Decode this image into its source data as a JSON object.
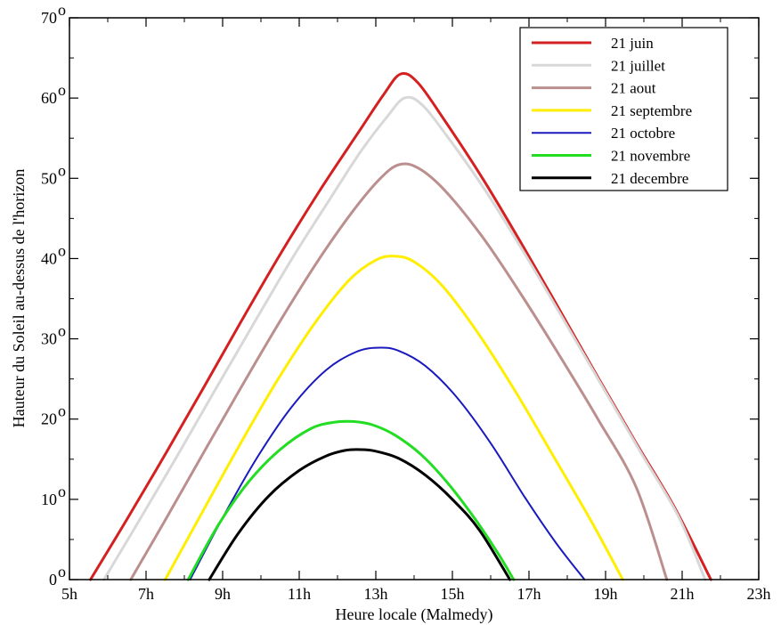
{
  "chart_data": {
    "type": "line",
    "xlabel": "Heure locale (Malmedy)",
    "ylabel": "Hauteur du Soleil au-dessus de l'horizon",
    "xlim": [
      5,
      23
    ],
    "ylim": [
      0,
      70
    ],
    "grid": false,
    "legend_position": "top-right",
    "x_tick_values": [
      5,
      7,
      9,
      11,
      13,
      15,
      17,
      19,
      21,
      23
    ],
    "x_tick_labels": [
      "5h",
      "7h",
      "9h",
      "11h",
      "13h",
      "15h",
      "17h",
      "19h",
      "21h",
      "23h"
    ],
    "y_tick_values": [
      0,
      10,
      20,
      30,
      40,
      50,
      60,
      70
    ],
    "y_tick_labels": [
      "0",
      "10",
      "20",
      "30",
      "40",
      "50",
      "60",
      "70"
    ],
    "y_tick_unit": "o",
    "series": [
      {
        "name": "21 juin",
        "color": "#d42020",
        "width": 3,
        "x": [
          5.55,
          6.5,
          7.5,
          8.5,
          9.5,
          10.5,
          11.5,
          12.5,
          13.2,
          13.65,
          14.1,
          14.8,
          15.8,
          16.8,
          17.8,
          18.8,
          19.8,
          20.8,
          21.75
        ],
        "y": [
          0,
          7.5,
          15.6,
          23.9,
          32.3,
          40.5,
          48.2,
          55.4,
          60.4,
          63,
          61.9,
          57.2,
          49.9,
          41.9,
          33.6,
          25.2,
          17,
          9,
          0
        ]
      },
      {
        "name": "21 juillet",
        "color": "#d8d8d8",
        "width": 3,
        "x": [
          5.9,
          6.8,
          7.8,
          8.8,
          9.8,
          10.8,
          11.8,
          12.6,
          13.3,
          13.75,
          14.2,
          14.9,
          15.9,
          16.9,
          17.9,
          18.9,
          19.9,
          20.9,
          21.6
        ],
        "y": [
          0,
          7.2,
          15.3,
          23.6,
          31.8,
          39.9,
          47.4,
          53.3,
          57.7,
          60,
          59.2,
          55,
          48.2,
          40.5,
          32.4,
          24.2,
          16,
          7.9,
          0
        ]
      },
      {
        "name": "21 aout",
        "color": "#bc8f8f",
        "width": 3,
        "x": [
          6.6,
          7.5,
          8.5,
          9.5,
          10.5,
          11.5,
          12.4,
          13.1,
          13.6,
          14.1,
          14.8,
          15.8,
          16.8,
          17.8,
          18.8,
          19.8,
          20.6
        ],
        "y": [
          0,
          7.4,
          15.8,
          24.1,
          32.2,
          39.8,
          45.9,
          49.9,
          51.7,
          51.3,
          48.5,
          42.6,
          35.5,
          27.9,
          20,
          11.5,
          0
        ]
      },
      {
        "name": "21 septembre",
        "color": "#ffee00",
        "width": 3,
        "x": [
          7.5,
          8.4,
          9.4,
          10.4,
          11.4,
          12.3,
          13,
          13.5,
          14,
          14.7,
          15.6,
          16.6,
          17.6,
          18.6,
          19.45
        ],
        "y": [
          0,
          7.8,
          16.4,
          24.6,
          31.9,
          37.3,
          39.8,
          40.3,
          39.6,
          36.8,
          31.2,
          23.8,
          15.7,
          7.5,
          0
        ]
      },
      {
        "name": "21 octobre",
        "color": "#1a1abf",
        "width": 2,
        "x": [
          8.15,
          9,
          9.9,
          10.8,
          11.7,
          12.5,
          13.1,
          13.6,
          14.3,
          15.1,
          16,
          16.9,
          17.7,
          18.45
        ],
        "y": [
          0,
          7.7,
          15.2,
          21.5,
          26.1,
          28.4,
          28.9,
          28.5,
          26.6,
          22.8,
          17,
          10.2,
          4.6,
          0
        ]
      },
      {
        "name": "21 novembre",
        "color": "#22dd22",
        "width": 3,
        "x": [
          8.1,
          8.9,
          9.7,
          10.5,
          11.3,
          11.9,
          12.4,
          12.9,
          13.5,
          14.2,
          14.9,
          15.6,
          16.2,
          16.6
        ],
        "y": [
          0,
          6.9,
          12.3,
          16.2,
          18.8,
          19.6,
          19.7,
          19.3,
          18,
          15.5,
          11.9,
          7.5,
          3.2,
          0
        ]
      },
      {
        "name": "21 decembre",
        "color": "#000000",
        "width": 3,
        "x": [
          8.65,
          9.4,
          10.2,
          11,
          11.7,
          12.2,
          12.6,
          13,
          13.6,
          14.3,
          15,
          15.7,
          16.5
        ],
        "y": [
          0,
          5.7,
          10.4,
          13.6,
          15.4,
          16.1,
          16.2,
          16,
          15.1,
          13,
          10,
          6.2,
          0
        ]
      }
    ]
  }
}
